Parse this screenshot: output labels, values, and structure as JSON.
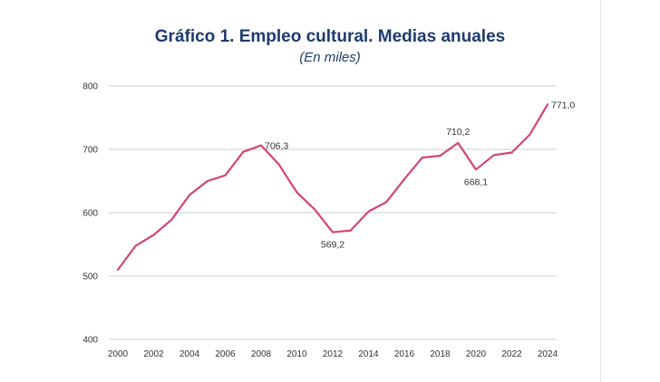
{
  "chart_data": {
    "type": "line",
    "title": "Gráfico 1. Empleo cultural. Medias anuales",
    "subtitle": "(En miles)",
    "xlabel": "",
    "ylabel": "",
    "x": [
      2000,
      2001,
      2002,
      2003,
      2004,
      2005,
      2006,
      2007,
      2008,
      2009,
      2010,
      2011,
      2012,
      2013,
      2014,
      2015,
      2016,
      2017,
      2018,
      2019,
      2020,
      2021,
      2022,
      2023,
      2024
    ],
    "series": [
      {
        "values": [
          510.0,
          548.0,
          565.0,
          589.0,
          628.0,
          650.0,
          659.0,
          696.0,
          706.3,
          676.0,
          632.0,
          605.0,
          569.2,
          572.0,
          602.0,
          617.0,
          653.0,
          687.0,
          690.0,
          710.2,
          668.1,
          691.0,
          695.0,
          723.0,
          771.0
        ],
        "color": "#d4466e"
      }
    ],
    "xticks": [
      "2000",
      "2002",
      "2004",
      "2006",
      "2008",
      "2010",
      "2012",
      "2014",
      "2016",
      "2018",
      "2020",
      "2022",
      "2024"
    ],
    "yticks": [
      "400",
      "500",
      "600",
      "700",
      "800"
    ],
    "ylim": [
      400,
      800
    ],
    "xlim": [
      2000,
      2024
    ],
    "grid": "horizontal",
    "annotations": [
      {
        "x": 2008,
        "y": 706.3,
        "text": "706,3",
        "position": "right"
      },
      {
        "x": 2012,
        "y": 569.2,
        "text": "569,2",
        "position": "below"
      },
      {
        "x": 2019,
        "y": 710.2,
        "text": "710,2",
        "position": "above"
      },
      {
        "x": 2020,
        "y": 668.1,
        "text": "668,1",
        "position": "below"
      },
      {
        "x": 2024,
        "y": 771.0,
        "text": "771,0",
        "position": "right"
      }
    ],
    "colors": {
      "line": "#d4466e",
      "grid": "#cfcfcf",
      "title": "#1f3b6e"
    }
  }
}
